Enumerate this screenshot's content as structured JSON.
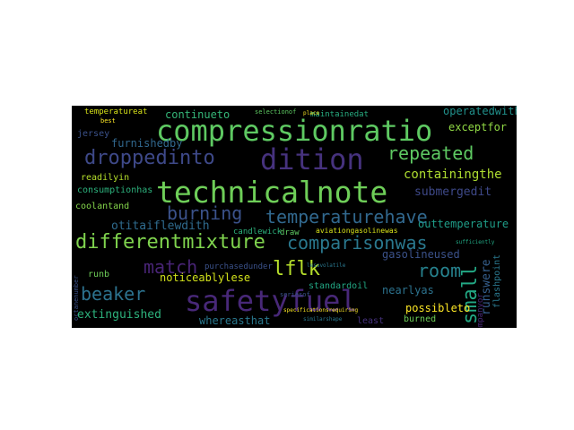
{
  "words": [
    {
      "text": "compressionratio",
      "color": "#5ec962"
    },
    {
      "text": "technicalnote",
      "color": "#6ece58"
    },
    {
      "text": "safetyfuel",
      "color": "#482878"
    },
    {
      "text": "dition",
      "color": "#46327e"
    },
    {
      "text": "droppedinto",
      "color": "#3e4989"
    },
    {
      "text": "differentmixture",
      "color": "#7fd34e"
    },
    {
      "text": "comparisonwas",
      "color": "#2a788e"
    },
    {
      "text": "temperaturehave",
      "color": "#31688e"
    },
    {
      "text": "burning",
      "color": "#3b528b"
    },
    {
      "text": "repeated",
      "color": "#5ec962"
    },
    {
      "text": "lflk",
      "color": "#b5de2b"
    },
    {
      "text": "beaker",
      "color": "#2c728e"
    },
    {
      "text": "match",
      "color": "#482475"
    },
    {
      "text": "room",
      "color": "#26828e"
    },
    {
      "text": "small",
      "color": "#22a884"
    },
    {
      "text": "extinguished",
      "color": "#2db27d"
    },
    {
      "text": "continueto",
      "color": "#35b779"
    },
    {
      "text": "containingthe",
      "color": "#addc30"
    },
    {
      "text": "submergedit",
      "color": "#3e4989"
    },
    {
      "text": "operatedwith",
      "color": "#21918c"
    },
    {
      "text": "exceptfor",
      "color": "#8fd744"
    },
    {
      "text": "furnishedby",
      "color": "#31688e"
    },
    {
      "text": "otitaiflewdith",
      "color": "#2f6b8e"
    },
    {
      "text": "outtemperature",
      "color": "#1f9e89"
    },
    {
      "text": "gasolineused",
      "color": "#3b528b"
    },
    {
      "text": "noticeablylese",
      "color": "#d2e21b"
    },
    {
      "text": "whereasthat",
      "color": "#2a788e"
    },
    {
      "text": "possibleto",
      "color": "#fde725"
    },
    {
      "text": "nearlyas",
      "color": "#2c728e"
    },
    {
      "text": "runswere",
      "color": "#355f8d"
    },
    {
      "text": "consumptionhas",
      "color": "#2db27d"
    },
    {
      "text": "coolantand",
      "color": "#84d44b"
    },
    {
      "text": "readilyin",
      "color": "#b5de2b"
    },
    {
      "text": "temperatureat",
      "color": "#d8e219"
    },
    {
      "text": "maintainedat",
      "color": "#27ad81"
    },
    {
      "text": "jersey",
      "color": "#3b528b"
    },
    {
      "text": "draw",
      "color": "#5ec962"
    },
    {
      "text": "runb",
      "color": "#6ece58"
    },
    {
      "text": "burned",
      "color": "#6ece58"
    },
    {
      "text": "least",
      "color": "#46327e"
    },
    {
      "text": "standardoil",
      "color": "#22a884"
    },
    {
      "text": "candlewick",
      "color": "#2db27d"
    },
    {
      "text": "purchasedunder",
      "color": "#3b528b"
    },
    {
      "text": "aviationgasolinewas",
      "color": "#d8e219"
    },
    {
      "text": "flashpoint",
      "color": "#2a788e"
    },
    {
      "text": "companyor",
      "color": "#482878"
    },
    {
      "text": "selectionof",
      "color": "#5ec962"
    },
    {
      "text": "best",
      "color": "#fde725"
    },
    {
      "text": "specificationsrequiring",
      "color": "#fde725"
    },
    {
      "text": "seriesof",
      "color": "#3b528b"
    },
    {
      "text": "similarshape",
      "color": "#2a788e"
    },
    {
      "text": "lessvolatile",
      "color": "#2a788e"
    },
    {
      "text": "octanenumber",
      "color": "#3b528b"
    },
    {
      "text": "place",
      "color": "#fde725"
    },
    {
      "text": "sufficiently",
      "color": "#22a884"
    }
  ]
}
